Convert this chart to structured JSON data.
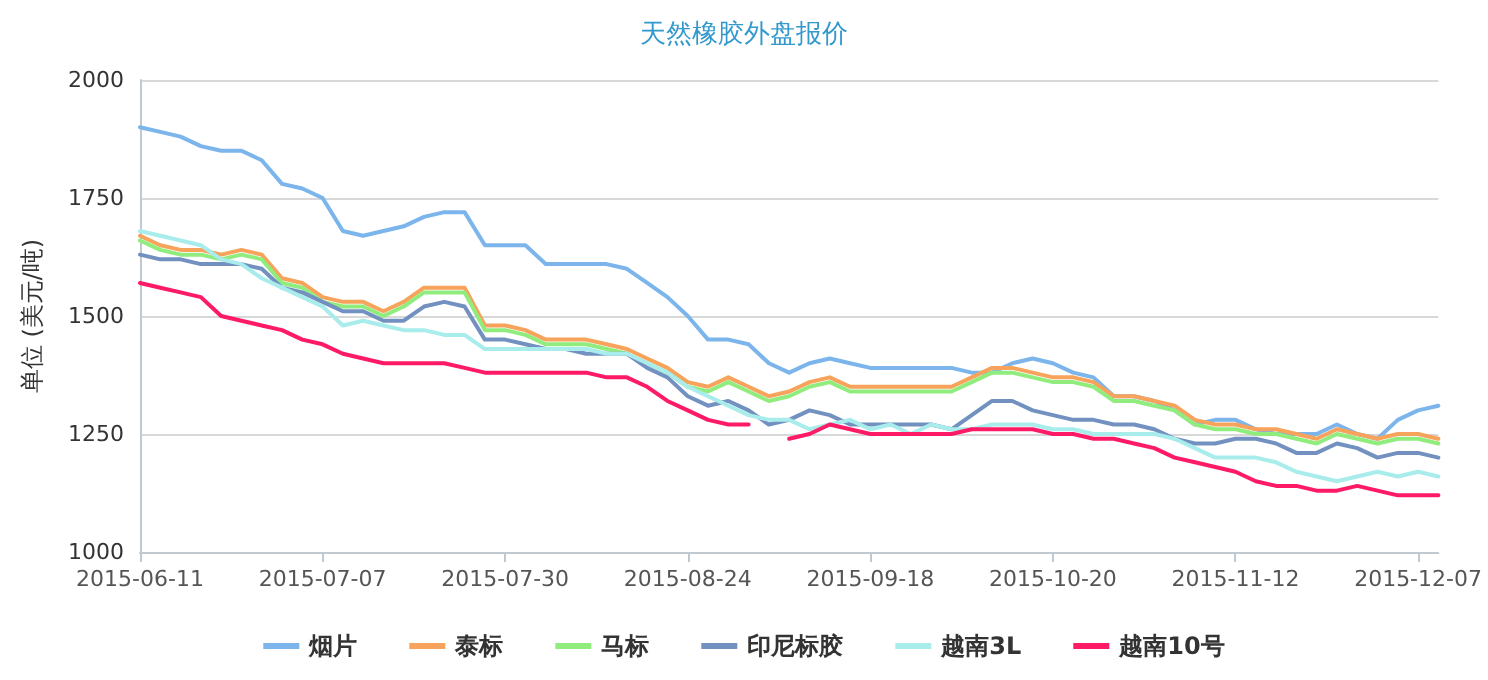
{
  "chart_data": {
    "type": "line",
    "title": "天然橡胶外盘报价",
    "ylabel": "单位 (美元/吨)",
    "categories": [
      "2015-06-11",
      null,
      null,
      null,
      null,
      null,
      null,
      null,
      null,
      "2015-07-07",
      null,
      null,
      null,
      null,
      null,
      null,
      null,
      null,
      "2015-07-30",
      null,
      null,
      null,
      null,
      null,
      null,
      null,
      null,
      "2015-08-24",
      null,
      null,
      null,
      null,
      null,
      null,
      null,
      null,
      "2015-09-18",
      null,
      null,
      null,
      null,
      null,
      null,
      null,
      null,
      "2015-10-20",
      null,
      null,
      null,
      null,
      null,
      null,
      null,
      null,
      "2015-11-12",
      null,
      null,
      null,
      null,
      null,
      null,
      null,
      null,
      "2015-12-07",
      null
    ],
    "series": [
      {
        "name": "烟片",
        "color": "#7cb5ec",
        "values": [
          1900,
          1890,
          1880,
          1860,
          1850,
          1850,
          1830,
          1780,
          1770,
          1750,
          1680,
          1670,
          1680,
          1690,
          1710,
          1720,
          1720,
          1650,
          1650,
          1650,
          1610,
          1610,
          1610,
          1610,
          1600,
          1570,
          1540,
          1500,
          1450,
          1450,
          1440,
          1400,
          1380,
          1400,
          1410,
          1400,
          1390,
          1390,
          1390,
          1390,
          1390,
          1380,
          1380,
          1400,
          1410,
          1400,
          1380,
          1370,
          1330,
          1330,
          1320,
          1300,
          1270,
          1280,
          1280,
          1260,
          1250,
          1250,
          1250,
          1270,
          1250,
          1240,
          1280,
          1300,
          1310
        ]
      },
      {
        "name": "泰标",
        "color": "#f7a35c",
        "values": [
          1670,
          1650,
          1640,
          1640,
          1630,
          1640,
          1630,
          1580,
          1570,
          1540,
          1530,
          1530,
          1510,
          1530,
          1560,
          1560,
          1560,
          1480,
          1480,
          1470,
          1450,
          1450,
          1450,
          1440,
          1430,
          1410,
          1390,
          1360,
          1350,
          1370,
          1350,
          1330,
          1340,
          1360,
          1370,
          1350,
          1350,
          1350,
          1350,
          1350,
          1350,
          1370,
          1390,
          1390,
          1380,
          1370,
          1370,
          1360,
          1330,
          1330,
          1320,
          1310,
          1280,
          1270,
          1270,
          1260,
          1260,
          1250,
          1240,
          1260,
          1250,
          1240,
          1250,
          1250,
          1240
        ]
      },
      {
        "name": "马标",
        "color": "#90ed7d",
        "values": [
          1660,
          1640,
          1630,
          1630,
          1620,
          1630,
          1620,
          1570,
          1560,
          1530,
          1520,
          1520,
          1500,
          1520,
          1550,
          1550,
          1550,
          1470,
          1470,
          1460,
          1440,
          1440,
          1440,
          1430,
          1420,
          1400,
          1380,
          1350,
          1340,
          1360,
          1340,
          1320,
          1330,
          1350,
          1360,
          1340,
          1340,
          1340,
          1340,
          1340,
          1340,
          1360,
          1380,
          1380,
          1370,
          1360,
          1360,
          1350,
          1320,
          1320,
          1310,
          1300,
          1270,
          1260,
          1260,
          1250,
          1250,
          1240,
          1230,
          1250,
          1240,
          1230,
          1240,
          1240,
          1230
        ]
      },
      {
        "name": "印尼标胶",
        "color": "#7291c0",
        "values": [
          1630,
          1620,
          1620,
          1610,
          1610,
          1610,
          1600,
          1560,
          1550,
          1530,
          1510,
          1510,
          1490,
          1490,
          1520,
          1530,
          1520,
          1450,
          1450,
          1440,
          1430,
          1430,
          1420,
          1420,
          1420,
          1390,
          1370,
          1330,
          1310,
          1320,
          1300,
          1270,
          1280,
          1300,
          1290,
          1270,
          1270,
          1270,
          1270,
          1270,
          1260,
          1290,
          1320,
          1320,
          1300,
          1290,
          1280,
          1280,
          1270,
          1270,
          1260,
          1240,
          1230,
          1230,
          1240,
          1240,
          1230,
          1210,
          1210,
          1230,
          1220,
          1200,
          1210,
          1210,
          1200
        ]
      },
      {
        "name": "越南3L",
        "color": "#a8ecec",
        "values": [
          1680,
          1670,
          1660,
          1650,
          1620,
          1610,
          1580,
          1560,
          1540,
          1520,
          1480,
          1490,
          1480,
          1470,
          1470,
          1460,
          1460,
          1430,
          1430,
          1430,
          1430,
          1430,
          1430,
          1420,
          1420,
          1400,
          1380,
          1350,
          1330,
          1310,
          1290,
          1280,
          1280,
          1260,
          1270,
          1280,
          1260,
          1270,
          1250,
          1270,
          1260,
          1260,
          1270,
          1270,
          1270,
          1260,
          1260,
          1250,
          1250,
          1250,
          1250,
          1240,
          1220,
          1200,
          1200,
          1200,
          1190,
          1170,
          1160,
          1150,
          1160,
          1170,
          1160,
          1170,
          1160
        ]
      },
      {
        "name": "越南10号",
        "color": "#ff1a66",
        "values": [
          1570,
          1560,
          1550,
          1540,
          1500,
          1490,
          1480,
          1470,
          1450,
          1440,
          1420,
          1410,
          1400,
          1400,
          1400,
          1400,
          1390,
          1380,
          1380,
          1380,
          1380,
          1380,
          1380,
          1370,
          1370,
          1350,
          1320,
          1300,
          1280,
          1270,
          1270,
          null,
          1240,
          1250,
          1270,
          1260,
          1250,
          1250,
          1250,
          1250,
          1250,
          1260,
          1260,
          1260,
          1260,
          1250,
          1250,
          1240,
          1240,
          1230,
          1220,
          1200,
          1190,
          1180,
          1170,
          1150,
          1140,
          1140,
          1130,
          1130,
          1140,
          1130,
          1120,
          1120,
          1120
        ]
      }
    ],
    "ylim": [
      1000,
      2000
    ],
    "yticks": [
      1000,
      1250,
      1500,
      1750,
      2000
    ],
    "grid": "y",
    "legend": "bottom",
    "marker": "none",
    "line_style": "solid"
  }
}
